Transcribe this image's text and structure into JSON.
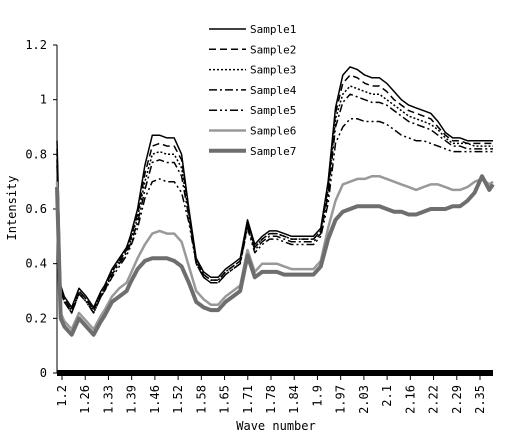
{
  "chart_data": {
    "type": "line",
    "title": "",
    "xlabel": "Wave number",
    "ylabel": "Intensity",
    "ylim": [
      0,
      1.2
    ],
    "xlim": [
      1.2,
      2.39
    ],
    "x_tick_labels": [
      "1.2",
      "1.26",
      "1.33",
      "1.39",
      "1.46",
      "1.52",
      "1.58",
      "1.65",
      "1.71",
      "1.78",
      "1.84",
      "1.9",
      "1.97",
      "2.03",
      "2.1",
      "2.16",
      "2.22",
      "2.29",
      "2.35"
    ],
    "y_tick_labels": [
      "0",
      "0.2",
      "0.4",
      "0.6",
      "0.8",
      "1",
      "1.2"
    ],
    "legend_position": "top-center",
    "grid": false,
    "x": [
      1.2,
      1.21,
      1.22,
      1.24,
      1.26,
      1.28,
      1.3,
      1.32,
      1.33,
      1.35,
      1.37,
      1.39,
      1.4,
      1.42,
      1.44,
      1.46,
      1.48,
      1.5,
      1.52,
      1.54,
      1.56,
      1.58,
      1.6,
      1.62,
      1.64,
      1.66,
      1.68,
      1.7,
      1.72,
      1.74,
      1.76,
      1.78,
      1.8,
      1.82,
      1.84,
      1.86,
      1.88,
      1.9,
      1.92,
      1.94,
      1.96,
      1.98,
      2.0,
      2.02,
      2.04,
      2.06,
      2.08,
      2.1,
      2.12,
      2.14,
      2.16,
      2.18,
      2.2,
      2.22,
      2.24,
      2.26,
      2.28,
      2.3,
      2.32,
      2.34,
      2.36,
      2.38,
      2.39
    ],
    "series": [
      {
        "name": "Sample1",
        "style": "solid",
        "color": "#000000",
        "values": [
          0.85,
          0.32,
          0.28,
          0.24,
          0.31,
          0.28,
          0.24,
          0.3,
          0.32,
          0.38,
          0.42,
          0.46,
          0.5,
          0.6,
          0.76,
          0.87,
          0.87,
          0.86,
          0.86,
          0.8,
          0.6,
          0.42,
          0.37,
          0.35,
          0.35,
          0.38,
          0.4,
          0.42,
          0.56,
          0.47,
          0.5,
          0.52,
          0.52,
          0.51,
          0.5,
          0.5,
          0.5,
          0.5,
          0.53,
          0.7,
          0.97,
          1.09,
          1.12,
          1.11,
          1.09,
          1.08,
          1.08,
          1.06,
          1.03,
          1.0,
          0.98,
          0.97,
          0.96,
          0.95,
          0.92,
          0.88,
          0.86,
          0.86,
          0.85,
          0.85,
          0.85,
          0.85,
          0.85
        ]
      },
      {
        "name": "Sample2",
        "style": "dash",
        "color": "#000000",
        "values": [
          0.82,
          0.31,
          0.27,
          0.23,
          0.3,
          0.27,
          0.23,
          0.29,
          0.31,
          0.37,
          0.41,
          0.45,
          0.49,
          0.58,
          0.73,
          0.83,
          0.84,
          0.83,
          0.83,
          0.78,
          0.59,
          0.41,
          0.36,
          0.34,
          0.34,
          0.37,
          0.39,
          0.41,
          0.55,
          0.46,
          0.49,
          0.51,
          0.51,
          0.5,
          0.49,
          0.49,
          0.49,
          0.49,
          0.52,
          0.68,
          0.95,
          1.06,
          1.09,
          1.08,
          1.06,
          1.05,
          1.05,
          1.03,
          1.0,
          0.98,
          0.96,
          0.95,
          0.94,
          0.93,
          0.9,
          0.87,
          0.85,
          0.85,
          0.84,
          0.84,
          0.84,
          0.84,
          0.84
        ]
      },
      {
        "name": "Sample3",
        "style": "dot",
        "color": "#000000",
        "values": [
          0.8,
          0.31,
          0.27,
          0.23,
          0.3,
          0.27,
          0.23,
          0.29,
          0.31,
          0.37,
          0.41,
          0.45,
          0.48,
          0.57,
          0.7,
          0.8,
          0.81,
          0.8,
          0.8,
          0.75,
          0.58,
          0.41,
          0.36,
          0.34,
          0.34,
          0.37,
          0.39,
          0.41,
          0.55,
          0.46,
          0.49,
          0.51,
          0.51,
          0.5,
          0.49,
          0.49,
          0.49,
          0.49,
          0.52,
          0.67,
          0.93,
          1.02,
          1.05,
          1.04,
          1.03,
          1.02,
          1.02,
          1.0,
          0.98,
          0.96,
          0.94,
          0.93,
          0.92,
          0.91,
          0.89,
          0.86,
          0.84,
          0.84,
          0.84,
          0.83,
          0.83,
          0.83,
          0.83
        ]
      },
      {
        "name": "Sample4",
        "style": "dashdot",
        "color": "#000000",
        "values": [
          0.78,
          0.3,
          0.26,
          0.22,
          0.29,
          0.26,
          0.22,
          0.28,
          0.3,
          0.36,
          0.4,
          0.44,
          0.47,
          0.55,
          0.67,
          0.77,
          0.78,
          0.77,
          0.77,
          0.72,
          0.57,
          0.4,
          0.35,
          0.33,
          0.33,
          0.36,
          0.38,
          0.4,
          0.54,
          0.45,
          0.48,
          0.5,
          0.5,
          0.49,
          0.48,
          0.48,
          0.48,
          0.48,
          0.51,
          0.65,
          0.9,
          0.99,
          1.02,
          1.01,
          1.0,
          0.99,
          0.99,
          0.98,
          0.96,
          0.94,
          0.92,
          0.91,
          0.9,
          0.89,
          0.87,
          0.85,
          0.83,
          0.83,
          0.82,
          0.82,
          0.82,
          0.82,
          0.82
        ]
      },
      {
        "name": "Sample5",
        "style": "dashdotdot",
        "color": "#000000",
        "values": [
          0.76,
          0.3,
          0.26,
          0.22,
          0.29,
          0.26,
          0.22,
          0.28,
          0.3,
          0.35,
          0.39,
          0.43,
          0.46,
          0.53,
          0.64,
          0.7,
          0.71,
          0.7,
          0.7,
          0.66,
          0.55,
          0.4,
          0.35,
          0.33,
          0.33,
          0.36,
          0.38,
          0.4,
          0.53,
          0.44,
          0.47,
          0.49,
          0.49,
          0.48,
          0.47,
          0.47,
          0.47,
          0.47,
          0.5,
          0.62,
          0.84,
          0.9,
          0.93,
          0.93,
          0.92,
          0.92,
          0.92,
          0.91,
          0.89,
          0.87,
          0.86,
          0.85,
          0.85,
          0.84,
          0.83,
          0.82,
          0.81,
          0.81,
          0.81,
          0.81,
          0.81,
          0.81,
          0.81
        ]
      },
      {
        "name": "Sample6",
        "style": "solid",
        "color": "#999999",
        "values": [
          0.7,
          0.22,
          0.19,
          0.16,
          0.22,
          0.19,
          0.16,
          0.21,
          0.23,
          0.28,
          0.31,
          0.33,
          0.36,
          0.42,
          0.47,
          0.51,
          0.52,
          0.51,
          0.51,
          0.48,
          0.39,
          0.3,
          0.27,
          0.25,
          0.25,
          0.28,
          0.3,
          0.32,
          0.45,
          0.37,
          0.4,
          0.4,
          0.4,
          0.39,
          0.38,
          0.38,
          0.38,
          0.38,
          0.41,
          0.53,
          0.63,
          0.69,
          0.7,
          0.71,
          0.71,
          0.72,
          0.72,
          0.71,
          0.7,
          0.69,
          0.68,
          0.67,
          0.68,
          0.69,
          0.69,
          0.68,
          0.67,
          0.67,
          0.68,
          0.7,
          0.71,
          0.69,
          0.7
        ]
      },
      {
        "name": "Sample7",
        "style": "thick",
        "color": "#6e6e6e",
        "values": [
          0.68,
          0.2,
          0.17,
          0.14,
          0.2,
          0.17,
          0.14,
          0.19,
          0.21,
          0.26,
          0.28,
          0.3,
          0.33,
          0.38,
          0.41,
          0.42,
          0.42,
          0.42,
          0.41,
          0.39,
          0.33,
          0.26,
          0.24,
          0.23,
          0.23,
          0.26,
          0.28,
          0.3,
          0.43,
          0.35,
          0.37,
          0.37,
          0.37,
          0.36,
          0.36,
          0.36,
          0.36,
          0.36,
          0.39,
          0.49,
          0.56,
          0.59,
          0.6,
          0.61,
          0.61,
          0.61,
          0.61,
          0.6,
          0.59,
          0.59,
          0.58,
          0.58,
          0.59,
          0.6,
          0.6,
          0.6,
          0.61,
          0.61,
          0.63,
          0.66,
          0.72,
          0.67,
          0.69
        ]
      }
    ]
  }
}
